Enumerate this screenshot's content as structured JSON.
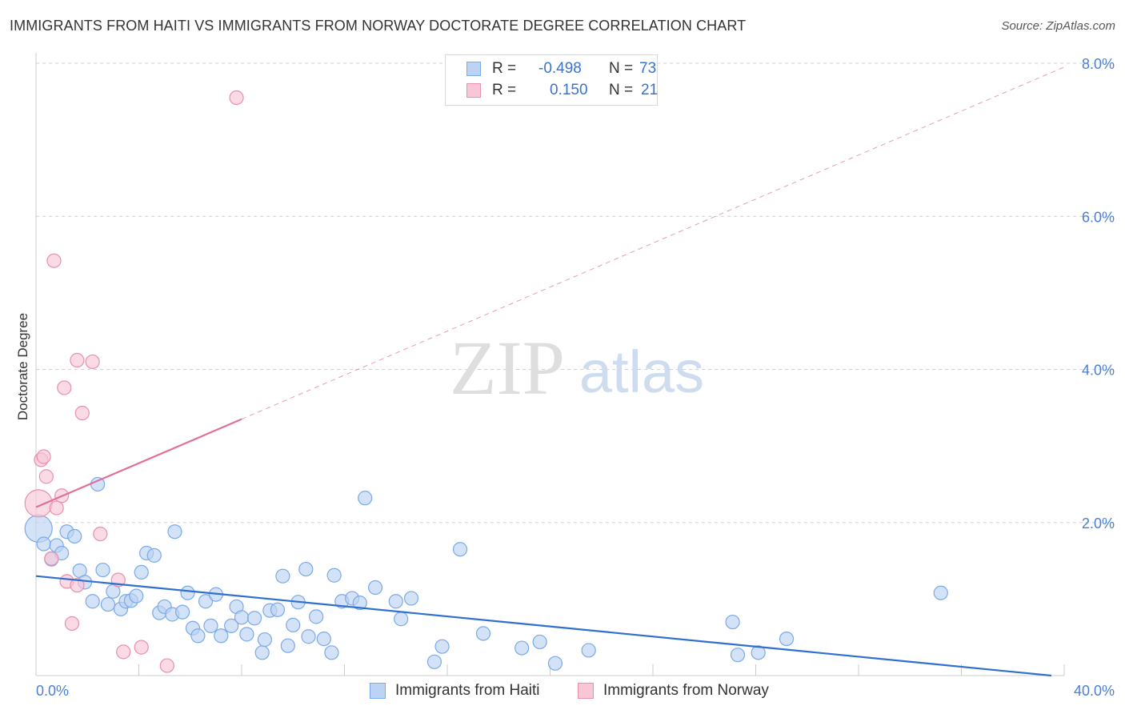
{
  "header": {
    "title": "IMMIGRANTS FROM HAITI VS IMMIGRANTS FROM NORWAY DOCTORATE DEGREE CORRELATION CHART",
    "source": "Source: ZipAtlas.com"
  },
  "watermark": {
    "zip": "ZIP",
    "atlas": "atlas"
  },
  "legend": {
    "r_label": "R =",
    "n_label": "N =",
    "series": [
      {
        "name": "Immigrants from Haiti",
        "r": "-0.498",
        "n": "73",
        "color": "#7aaae8",
        "fill": "#bcd3f3"
      },
      {
        "name": "Immigrants from Norway",
        "r": "0.150",
        "n": "21",
        "color": "#e890ac",
        "fill": "#f8c6d5"
      }
    ]
  },
  "colors": {
    "haiti_line": "#2f6fd1",
    "norway_line": "#e0709a",
    "grid": "#d0d0d0",
    "tick_text": "#4a7fd4"
  },
  "chart_data": {
    "type": "scatter",
    "title": "IMMIGRANTS FROM HAITI VS IMMIGRANTS FROM NORWAY DOCTORATE DEGREE CORRELATION CHART",
    "xlabel": "",
    "ylabel": "Doctorate Degree",
    "xlim": [
      0,
      40
    ],
    "ylim": [
      0,
      8
    ],
    "x_tick_labels": [
      {
        "value": 0,
        "label": "0.0%"
      },
      {
        "value": 40,
        "label": "40.0%"
      }
    ],
    "y_tick_labels": [
      {
        "value": 2,
        "label": "2.0%"
      },
      {
        "value": 4,
        "label": "4.0%"
      },
      {
        "value": 6,
        "label": "6.0%"
      },
      {
        "value": 8,
        "label": "8.0%"
      }
    ],
    "x_minor_ticks": [
      0,
      4,
      8,
      12,
      16,
      20,
      24,
      28,
      32,
      36,
      40
    ],
    "series": [
      {
        "name": "Immigrants from Haiti",
        "trend": {
          "x0": 0,
          "y0": 1.3,
          "x1": 39.5,
          "y1": 0.0,
          "dashed_from": null
        },
        "points": [
          [
            0.1,
            1.92
          ],
          [
            0.3,
            1.72
          ],
          [
            0.6,
            1.52
          ],
          [
            0.8,
            1.7
          ],
          [
            1.0,
            1.6
          ],
          [
            1.2,
            1.88
          ],
          [
            1.5,
            1.82
          ],
          [
            1.7,
            1.37
          ],
          [
            1.9,
            1.22
          ],
          [
            2.2,
            0.97
          ],
          [
            2.4,
            2.5
          ],
          [
            2.6,
            1.38
          ],
          [
            2.8,
            0.93
          ],
          [
            3.0,
            1.1
          ],
          [
            3.3,
            0.87
          ],
          [
            3.5,
            0.97
          ],
          [
            3.7,
            0.98
          ],
          [
            3.9,
            1.04
          ],
          [
            4.1,
            1.35
          ],
          [
            4.3,
            1.6
          ],
          [
            4.6,
            1.57
          ],
          [
            4.8,
            0.82
          ],
          [
            5.0,
            0.9
          ],
          [
            5.3,
            0.8
          ],
          [
            5.4,
            1.88
          ],
          [
            5.7,
            0.83
          ],
          [
            5.9,
            1.08
          ],
          [
            6.1,
            0.62
          ],
          [
            6.3,
            0.52
          ],
          [
            6.6,
            0.97
          ],
          [
            6.8,
            0.65
          ],
          [
            7.0,
            1.06
          ],
          [
            7.2,
            0.52
          ],
          [
            7.6,
            0.65
          ],
          [
            7.8,
            0.9
          ],
          [
            8.0,
            0.76
          ],
          [
            8.2,
            0.54
          ],
          [
            8.5,
            0.75
          ],
          [
            8.8,
            0.3
          ],
          [
            8.9,
            0.47
          ],
          [
            9.1,
            0.85
          ],
          [
            9.4,
            0.86
          ],
          [
            9.6,
            1.3
          ],
          [
            9.8,
            0.39
          ],
          [
            10.0,
            0.66
          ],
          [
            10.2,
            0.96
          ],
          [
            10.5,
            1.39
          ],
          [
            10.6,
            0.51
          ],
          [
            10.9,
            0.77
          ],
          [
            11.2,
            0.48
          ],
          [
            11.5,
            0.3
          ],
          [
            11.6,
            1.31
          ],
          [
            11.9,
            0.97
          ],
          [
            12.3,
            1.01
          ],
          [
            12.6,
            0.95
          ],
          [
            12.8,
            2.32
          ],
          [
            13.2,
            1.15
          ],
          [
            14.0,
            0.97
          ],
          [
            14.2,
            0.74
          ],
          [
            14.6,
            1.01
          ],
          [
            15.5,
            0.18
          ],
          [
            15.8,
            0.38
          ],
          [
            16.5,
            1.65
          ],
          [
            17.4,
            0.55
          ],
          [
            18.9,
            0.36
          ],
          [
            19.6,
            0.44
          ],
          [
            20.2,
            0.16
          ],
          [
            21.5,
            0.33
          ],
          [
            27.1,
            0.7
          ],
          [
            27.3,
            0.27
          ],
          [
            28.1,
            0.3
          ],
          [
            29.2,
            0.48
          ],
          [
            35.2,
            1.08
          ]
        ]
      },
      {
        "name": "Immigrants from Norway",
        "trend": {
          "x0": 0,
          "y0": 2.2,
          "x1": 40,
          "y1": 7.95,
          "dashed_from": 8
        },
        "points": [
          [
            0.1,
            2.25
          ],
          [
            0.2,
            2.82
          ],
          [
            0.3,
            2.86
          ],
          [
            0.4,
            2.6
          ],
          [
            0.6,
            1.53
          ],
          [
            0.7,
            5.42
          ],
          [
            0.8,
            2.19
          ],
          [
            1.0,
            2.35
          ],
          [
            1.1,
            3.76
          ],
          [
            1.2,
            1.23
          ],
          [
            1.4,
            0.68
          ],
          [
            1.6,
            1.18
          ],
          [
            1.6,
            4.12
          ],
          [
            1.8,
            3.43
          ],
          [
            2.2,
            4.1
          ],
          [
            2.5,
            1.85
          ],
          [
            3.2,
            1.25
          ],
          [
            3.4,
            0.31
          ],
          [
            4.1,
            0.37
          ],
          [
            5.1,
            0.13
          ],
          [
            7.8,
            7.55
          ]
        ]
      }
    ],
    "legend_position": "top-center"
  }
}
